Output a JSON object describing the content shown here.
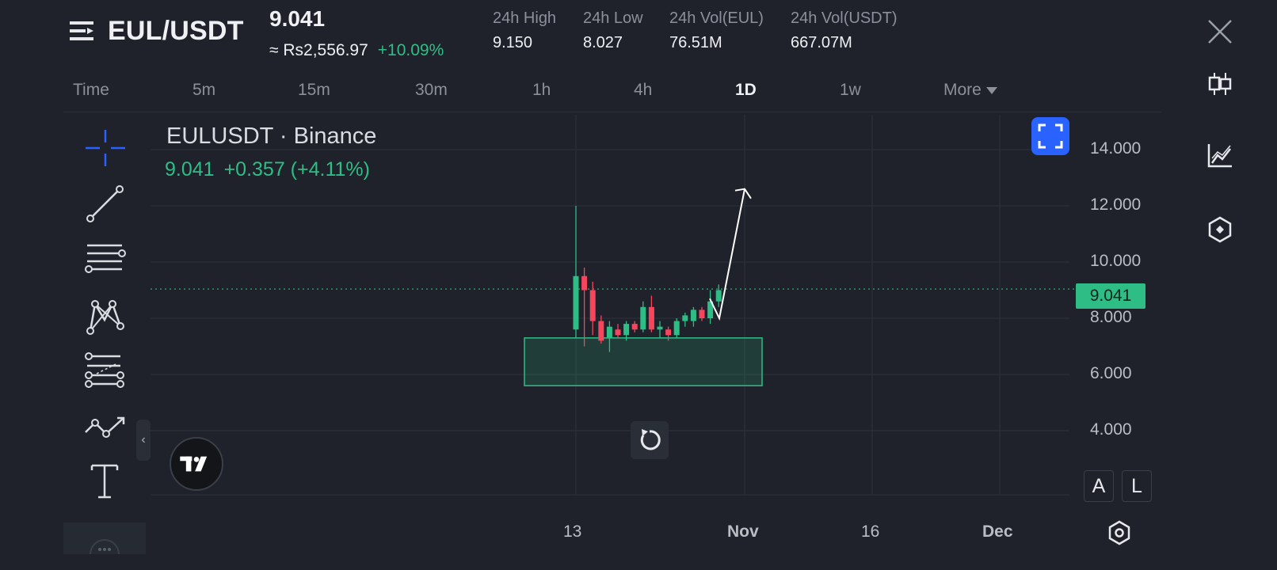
{
  "header": {
    "pair": "EUL/USDT",
    "price": "9.041",
    "fiat_price": "≈ Rs2,556.97",
    "change_pct": "+10.09%",
    "stats": [
      {
        "label": "24h High",
        "value": "9.150"
      },
      {
        "label": "24h Low",
        "value": "8.027"
      },
      {
        "label": "24h Vol(EUL)",
        "value": "76.51M"
      },
      {
        "label": "24h Vol(USDT)",
        "value": "667.07M"
      }
    ]
  },
  "timeframes": {
    "items": [
      "Time",
      "5m",
      "15m",
      "30m",
      "1h",
      "4h",
      "1D",
      "1w",
      "More"
    ],
    "active": "1D"
  },
  "legend": {
    "title": "EULUSDT · Binance",
    "last": "9.041",
    "change": "+0.357 (+4.11%)"
  },
  "price_axis": {
    "last_price_label": "9.041"
  },
  "scale_buttons": {
    "auto": "A",
    "log": "L"
  },
  "colors": {
    "up": "#2ebd85",
    "down": "#f6465d",
    "accent": "#2962ff",
    "background": "#1f222a"
  },
  "icons": {
    "menu": "menu-icon",
    "close": "close-icon",
    "candles": "candlestick-icon",
    "indicator": "line-chart-icon",
    "depth": "hexagon-icon",
    "settings": "settings-icon"
  },
  "chart_data": {
    "type": "candlestick",
    "symbol": "EULUSDT",
    "exchange": "Binance",
    "y_axis": {
      "ticks": [
        "4.000",
        "6.000",
        "8.000",
        "10.000",
        "12.000",
        "14.000"
      ],
      "range": [
        2.2,
        15.4
      ]
    },
    "x_axis": {
      "ticks": [
        "13",
        "Nov",
        "16",
        "Dec"
      ]
    },
    "last_price": 9.041,
    "candles": [
      {
        "o": 7.6,
        "h": 12.0,
        "l": 7.3,
        "c": 9.5
      },
      {
        "o": 9.5,
        "h": 9.8,
        "l": 7.0,
        "c": 9.0
      },
      {
        "o": 9.0,
        "h": 9.3,
        "l": 7.4,
        "c": 7.9
      },
      {
        "o": 7.9,
        "h": 8.1,
        "l": 7.1,
        "c": 7.2
      },
      {
        "o": 7.3,
        "h": 7.9,
        "l": 6.8,
        "c": 7.7
      },
      {
        "o": 7.6,
        "h": 7.8,
        "l": 7.3,
        "c": 7.4
      },
      {
        "o": 7.4,
        "h": 7.9,
        "l": 7.2,
        "c": 7.8
      },
      {
        "o": 7.8,
        "h": 7.9,
        "l": 7.5,
        "c": 7.6
      },
      {
        "o": 7.6,
        "h": 8.6,
        "l": 7.5,
        "c": 8.4
      },
      {
        "o": 8.4,
        "h": 8.8,
        "l": 7.5,
        "c": 7.6
      },
      {
        "o": 7.6,
        "h": 7.9,
        "l": 7.3,
        "c": 7.7
      },
      {
        "o": 7.6,
        "h": 7.7,
        "l": 7.2,
        "c": 7.4
      },
      {
        "o": 7.4,
        "h": 8.0,
        "l": 7.3,
        "c": 7.9
      },
      {
        "o": 7.9,
        "h": 8.2,
        "l": 7.7,
        "c": 8.1
      },
      {
        "o": 7.9,
        "h": 8.4,
        "l": 7.7,
        "c": 8.3
      },
      {
        "o": 8.3,
        "h": 8.4,
        "l": 7.9,
        "c": 8.0
      },
      {
        "o": 8.0,
        "h": 9.0,
        "l": 7.8,
        "c": 8.6
      },
      {
        "o": 8.6,
        "h": 9.2,
        "l": 8.4,
        "c": 9.0
      }
    ],
    "drawings": {
      "support_zone": {
        "y_top": 7.3,
        "y_bottom": 5.6
      },
      "projection_arrow": {
        "from": 8.0,
        "to": 12.6
      }
    },
    "grid": true
  }
}
